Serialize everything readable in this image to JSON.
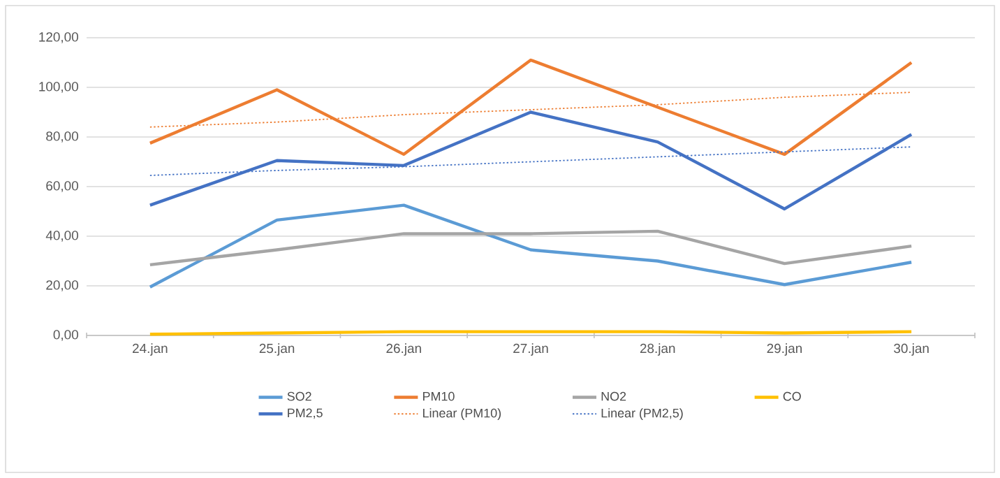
{
  "chart_data": {
    "type": "line",
    "categories": [
      "24.jan",
      "25.jan",
      "26.jan",
      "27.jan",
      "28.jan",
      "29.jan",
      "30.jan"
    ],
    "series": [
      {
        "name": "SO2",
        "color": "#5b9bd5",
        "values": [
          19.5,
          46.5,
          52.5,
          34.5,
          30,
          20.5,
          29.5
        ]
      },
      {
        "name": "PM10",
        "color": "#ed7d31",
        "values": [
          77.5,
          99,
          73,
          111,
          92,
          73,
          110
        ]
      },
      {
        "name": "NO2",
        "color": "#a5a5a5",
        "values": [
          28.5,
          34.5,
          41,
          41,
          42,
          29,
          36
        ]
      },
      {
        "name": "CO",
        "color": "#ffc000",
        "values": [
          0.5,
          1,
          1.5,
          1.5,
          1.5,
          1,
          1.5
        ]
      },
      {
        "name": "PM2,5",
        "color": "#4472c4",
        "values": [
          52.5,
          70.5,
          68.5,
          90,
          78,
          51,
          81
        ]
      },
      {
        "name": "Linear (PM10)",
        "color": "#ed7d31",
        "line_style": "dotted",
        "values": [
          84,
          86,
          89,
          91,
          93,
          96,
          98
        ]
      },
      {
        "name": "Linear (PM2,5)",
        "color": "#4472c4",
        "line_style": "dotted",
        "values": [
          64.5,
          66.5,
          68,
          70,
          72,
          74,
          76
        ]
      }
    ],
    "ylim": [
      0,
      120
    ],
    "yticks": [
      {
        "value": 0,
        "label": "0,00"
      },
      {
        "value": 20,
        "label": "20,00"
      },
      {
        "value": 40,
        "label": "40,00"
      },
      {
        "value": 60,
        "label": "60,00"
      },
      {
        "value": 80,
        "label": "80,00"
      },
      {
        "value": 100,
        "label": "100,00"
      },
      {
        "value": 120,
        "label": "120,00"
      }
    ],
    "grid": "y",
    "legend": "bottom"
  }
}
